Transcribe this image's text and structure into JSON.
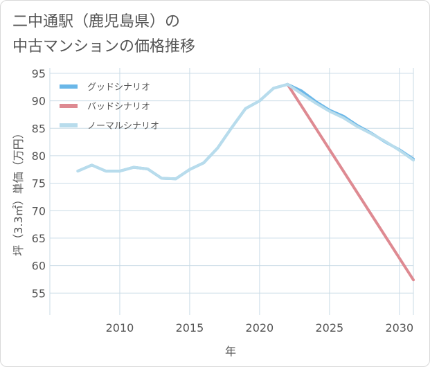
{
  "title_line1": "二中通駅（鹿児島県）の",
  "title_line2": "中古マンションの価格推移",
  "chart_data": {
    "type": "line",
    "xlabel": "年",
    "ylabel": "坪（3.3㎡）単価（万円）",
    "xlim": [
      2005,
      2031
    ],
    "ylim": [
      51,
      96
    ],
    "x_ticks": [
      2010,
      2015,
      2020,
      2025,
      2030
    ],
    "y_ticks": [
      55,
      60,
      65,
      70,
      75,
      80,
      85,
      90,
      95
    ],
    "grid": true,
    "legend_position": "top-left",
    "series": [
      {
        "name": "グッドシナリオ",
        "color": "#6ab7e8",
        "x": [
          2007,
          2008,
          2009,
          2010,
          2011,
          2012,
          2013,
          2014,
          2015,
          2016,
          2017,
          2018,
          2019,
          2020,
          2021,
          2022,
          2023,
          2024,
          2025,
          2026,
          2027,
          2028,
          2029,
          2030,
          2031
        ],
        "values": [
          77.2,
          78.3,
          77.2,
          77.2,
          77.9,
          77.6,
          75.9,
          75.8,
          77.5,
          78.7,
          81.4,
          85.1,
          88.6,
          90.0,
          92.3,
          93.0,
          91.8,
          89.9,
          88.3,
          87.2,
          85.5,
          84.1,
          82.5,
          81.1,
          79.4
        ]
      },
      {
        "name": "バッドシナリオ",
        "color": "#de8a92",
        "x": [
          2022,
          2031
        ],
        "values": [
          93.0,
          57.4
        ]
      },
      {
        "name": "ノーマルシナリオ",
        "color": "#b8dcec",
        "x": [
          2007,
          2008,
          2009,
          2010,
          2011,
          2012,
          2013,
          2014,
          2015,
          2016,
          2017,
          2018,
          2019,
          2020,
          2021,
          2022,
          2023,
          2024,
          2025,
          2026,
          2027,
          2028,
          2029,
          2030,
          2031
        ],
        "values": [
          77.2,
          78.3,
          77.2,
          77.2,
          77.9,
          77.6,
          75.9,
          75.8,
          77.5,
          78.7,
          81.4,
          85.1,
          88.6,
          90.0,
          92.3,
          93.0,
          91.3,
          89.6,
          88.1,
          86.9,
          85.3,
          84.0,
          82.6,
          81.0,
          79.2
        ]
      }
    ]
  }
}
